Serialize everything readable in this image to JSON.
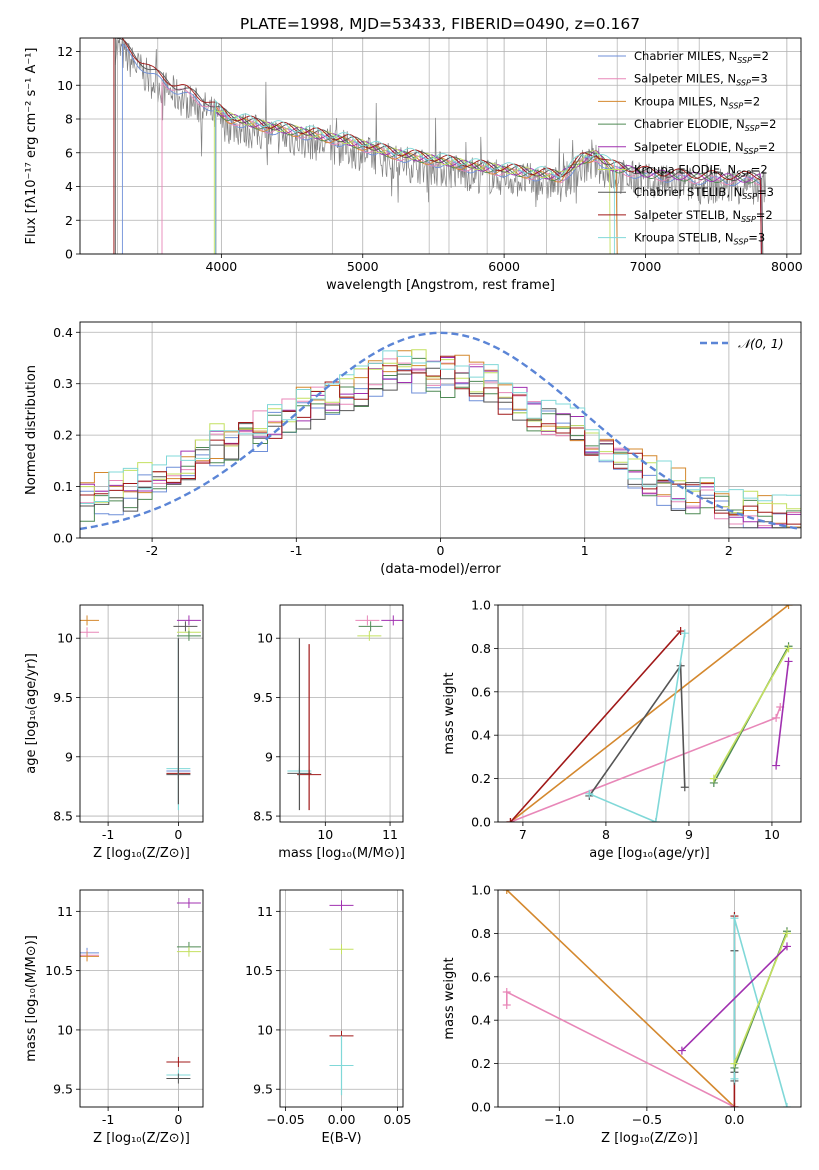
{
  "figure_title": "PLATE=1998, MJD=53433, FIBERID=0490, z=0.167",
  "legend_colors": [
    "#6f8fd8",
    "#e887b8",
    "#d4882e",
    "#4f8a55",
    "#a030b0",
    "#c4e060",
    "#555555",
    "#a01818",
    "#80d8d8"
  ],
  "chart_data": [
    {
      "id": "spectrum",
      "type": "line",
      "xlabel": "wavelength [Angstrom, rest frame]",
      "ylabel": "Flux [fλ10⁻¹⁷ erg cm⁻² s⁻¹ A⁻¹]",
      "xlim": [
        3000,
        8100
      ],
      "ylim": [
        0,
        12.8
      ],
      "xticks": [
        4000,
        5000,
        6000,
        7000,
        8000
      ],
      "yticks": [
        0,
        2,
        4,
        6,
        8,
        10,
        12
      ],
      "legend_position": "upper-right",
      "legend": [
        {
          "base": "Chabrier MILES, N",
          "sub": "SSP",
          "tail": "=2"
        },
        {
          "base": "Salpeter MILES, N",
          "sub": "SSP",
          "tail": "=3"
        },
        {
          "base": "Kroupa MILES, N",
          "sub": "SSP",
          "tail": "=2"
        },
        {
          "base": "Chabrier ELODIE, N",
          "sub": "SSP",
          "tail": "=2"
        },
        {
          "base": "Salpeter ELODIE, N",
          "sub": "SSP",
          "tail": "=2"
        },
        {
          "base": "Kroupa ELODIE, N",
          "sub": "SSP",
          "tail": "=2"
        },
        {
          "base": "Chabrier STELIB, N",
          "sub": "SSP",
          "tail": "=3"
        },
        {
          "base": "Salpeter STELIB, N",
          "sub": "SSP",
          "tail": "=2"
        },
        {
          "base": "Kroupa STELIB, N",
          "sub": "SSP",
          "tail": "=3"
        }
      ],
      "data_series": {
        "name": "data",
        "color": "#808080"
      },
      "model_knots": {
        "x": [
          3250,
          3500,
          3700,
          3900,
          4050,
          4300,
          4600,
          4900,
          5200,
          5500,
          5800,
          6100,
          6400,
          6550,
          6650,
          6750,
          7000,
          7300,
          7600,
          7800
        ],
        "y": [
          12.8,
          10.8,
          9.8,
          9.0,
          8.1,
          7.6,
          7.2,
          6.7,
          6.0,
          5.6,
          5.2,
          4.9,
          4.6,
          5.6,
          5.9,
          5.2,
          4.8,
          4.6,
          4.5,
          4.5
        ]
      }
    },
    {
      "id": "residuals",
      "type": "histogram",
      "xlabel": "(data-model)/error",
      "ylabel": "Normed distribution",
      "xlim": [
        -2.5,
        2.5
      ],
      "ylim": [
        0,
        0.42
      ],
      "xticks": [
        -2,
        -1,
        0,
        1,
        2
      ],
      "yticks": [
        0.0,
        0.1,
        0.2,
        0.3,
        0.4
      ],
      "legend": "𝒩(0, 1)",
      "legend_position": "upper-right",
      "gaussian": {
        "mean": 0,
        "sigma": 1,
        "color": "#5b85d6"
      },
      "histogram_envelope": {
        "x": [
          -2.5,
          -2.0,
          -1.6,
          -1.2,
          -0.8,
          -0.4,
          -0.1,
          0.3,
          0.6,
          1.0,
          1.4,
          1.8,
          2.2,
          2.5
        ],
        "y": [
          0.07,
          0.11,
          0.17,
          0.22,
          0.27,
          0.32,
          0.33,
          0.3,
          0.25,
          0.2,
          0.12,
          0.08,
          0.05,
          0.04
        ]
      }
    },
    {
      "id": "age-vs-Z",
      "type": "scatter",
      "xlabel": "Z [log₁₀(Z/Z⊙)]",
      "ylabel": "age  [log₁₀(age/yr)]",
      "xlim": [
        -1.4,
        0.35
      ],
      "ylim": [
        8.45,
        10.28
      ],
      "xticks": [
        -1,
        0
      ],
      "yticks": [
        8.5,
        9.0,
        9.5,
        10.0
      ],
      "points": [
        {
          "x": -1.3,
          "y": 10.05,
          "series": 1
        },
        {
          "x": -1.3,
          "y": 10.15,
          "series": 2
        },
        {
          "x": 0.0,
          "y": 8.88,
          "series": 0
        },
        {
          "x": 0.0,
          "y": 8.9,
          "series": 8
        },
        {
          "x": 0.0,
          "y": 8.86,
          "series": 7
        },
        {
          "x": 0.0,
          "y": 8.85,
          "series": 6
        },
        {
          "x": 0.1,
          "y": 10.1,
          "series": 6
        },
        {
          "x": 0.15,
          "y": 10.15,
          "series": 4
        },
        {
          "x": 0.15,
          "y": 10.05,
          "series": 5
        },
        {
          "x": 0.15,
          "y": 10.02,
          "series": 3
        }
      ]
    },
    {
      "id": "age-vs-mass",
      "type": "scatter",
      "xlabel": "mass [log₁₀(M/M⊙)]",
      "ylabel": "",
      "xlim": [
        9.3,
        11.2
      ],
      "ylim": [
        8.45,
        10.28
      ],
      "xticks": [
        10,
        11
      ],
      "yticks": [
        8.5,
        9.0,
        9.5,
        10.0
      ],
      "points": [
        {
          "x": 9.6,
          "y": 8.88,
          "series": 8
        },
        {
          "x": 9.6,
          "y": 8.86,
          "series": 6
        },
        {
          "x": 9.75,
          "y": 8.85,
          "series": 7
        },
        {
          "x": 10.65,
          "y": 10.15,
          "series": 1
        },
        {
          "x": 10.7,
          "y": 10.1,
          "series": 3
        },
        {
          "x": 10.68,
          "y": 10.02,
          "series": 5
        },
        {
          "x": 11.05,
          "y": 10.15,
          "series": 4
        }
      ]
    },
    {
      "id": "weight-vs-age",
      "type": "line",
      "xlabel": "age  [log₁₀(age/yr)]",
      "ylabel": "mass weight",
      "xlim": [
        6.7,
        10.35
      ],
      "ylim": [
        0,
        1.0
      ],
      "xticks": [
        7,
        8,
        9,
        10
      ],
      "yticks": [
        0.0,
        0.2,
        0.4,
        0.6,
        0.8,
        1.0
      ],
      "series": [
        {
          "index": 2,
          "x": [
            6.85,
            10.2
          ],
          "y": [
            0.0,
            1.0
          ]
        },
        {
          "index": 1,
          "x": [
            6.85,
            10.05,
            10.1
          ],
          "y": [
            0.0,
            0.48,
            0.53
          ]
        },
        {
          "index": 7,
          "x": [
            6.85,
            8.9
          ],
          "y": [
            0.0,
            0.88
          ]
        },
        {
          "index": 6,
          "x": [
            7.8,
            8.9,
            8.95
          ],
          "y": [
            0.12,
            0.72,
            0.16
          ]
        },
        {
          "index": 8,
          "x": [
            7.8,
            8.6,
            8.95
          ],
          "y": [
            0.13,
            0.0,
            0.87
          ]
        },
        {
          "index": 3,
          "x": [
            9.3,
            10.2
          ],
          "y": [
            0.18,
            0.81
          ]
        },
        {
          "index": 5,
          "x": [
            9.3,
            10.2
          ],
          "y": [
            0.2,
            0.8
          ]
        },
        {
          "index": 4,
          "x": [
            10.05,
            10.2
          ],
          "y": [
            0.26,
            0.74
          ]
        }
      ]
    },
    {
      "id": "mass-vs-Z",
      "type": "scatter",
      "xlabel": "Z [log₁₀(Z/Z⊙)]",
      "ylabel": "mass [log₁₀(M/M⊙)]",
      "xlim": [
        -1.4,
        0.35
      ],
      "ylim": [
        9.35,
        11.18
      ],
      "xticks": [
        -1,
        0
      ],
      "yticks": [
        9.5,
        10.0,
        10.5,
        11.0
      ],
      "points": [
        {
          "x": -1.3,
          "y": 10.65,
          "series": 0
        },
        {
          "x": -1.3,
          "y": 10.63,
          "series": 1
        },
        {
          "x": -1.3,
          "y": 10.62,
          "series": 2
        },
        {
          "x": 0.0,
          "y": 9.73,
          "series": 7
        },
        {
          "x": 0.0,
          "y": 9.62,
          "series": 8
        },
        {
          "x": 0.0,
          "y": 9.59,
          "series": 6
        },
        {
          "x": 0.15,
          "y": 10.7,
          "series": 3
        },
        {
          "x": 0.15,
          "y": 10.66,
          "series": 5
        },
        {
          "x": 0.15,
          "y": 11.07,
          "series": 4
        }
      ]
    },
    {
      "id": "mass-vs-ebv",
      "type": "scatter",
      "xlabel": "E(B-V)",
      "ylabel": "",
      "xlim": [
        -0.055,
        0.055
      ],
      "ylim": [
        9.35,
        11.18
      ],
      "xticks": [
        -0.05,
        0.0,
        0.05
      ],
      "xtick_labels": [
        "−0.05",
        "0.00",
        "0.05"
      ],
      "yticks": [
        9.5,
        10.0,
        10.5,
        11.0
      ],
      "points": [
        {
          "x": 0.0,
          "y": 11.05,
          "series": 4
        },
        {
          "x": 0.0,
          "y": 10.68,
          "series": 5
        },
        {
          "x": 0.0,
          "y": 9.95,
          "series": 7
        },
        {
          "x": 0.0,
          "y": 9.7,
          "series": 8
        }
      ]
    },
    {
      "id": "weight-vs-Z",
      "type": "line",
      "xlabel": "Z [log₁₀(Z/Z⊙)]",
      "ylabel": "mass weight",
      "xlim": [
        -1.35,
        0.38
      ],
      "ylim": [
        0,
        1.0
      ],
      "xticks": [
        -1.0,
        -0.5,
        0.0
      ],
      "xtick_labels": [
        "−1.0",
        "−0.5",
        "0.0"
      ],
      "yticks": [
        0.0,
        0.2,
        0.4,
        0.6,
        0.8,
        1.0
      ],
      "series": [
        {
          "index": 2,
          "x": [
            -1.3,
            0.0
          ],
          "y": [
            1.0,
            0.0
          ]
        },
        {
          "index": 1,
          "x": [
            -1.3,
            -1.3,
            0.0
          ],
          "y": [
            0.47,
            0.53,
            0.0
          ]
        },
        {
          "index": 7,
          "x": [
            0.0,
            0.0
          ],
          "y": [
            0.0,
            0.88
          ]
        },
        {
          "index": 6,
          "x": [
            0.0,
            0.0,
            0.0
          ],
          "y": [
            0.12,
            0.72,
            0.16
          ]
        },
        {
          "index": 8,
          "x": [
            0.0,
            0.0,
            0.3
          ],
          "y": [
            0.13,
            0.87,
            0.0
          ]
        },
        {
          "index": 3,
          "x": [
            0.0,
            0.3
          ],
          "y": [
            0.18,
            0.81
          ]
        },
        {
          "index": 5,
          "x": [
            0.0,
            0.3
          ],
          "y": [
            0.2,
            0.8
          ]
        },
        {
          "index": 4,
          "x": [
            -0.3,
            0.3
          ],
          "y": [
            0.26,
            0.74
          ]
        }
      ]
    }
  ]
}
